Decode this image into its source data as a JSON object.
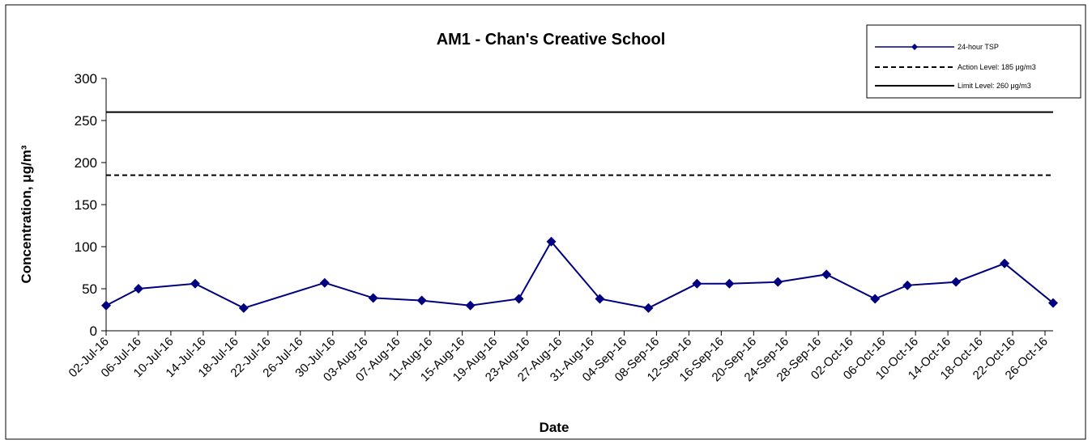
{
  "chart_data": {
    "type": "line",
    "title": "AM1 - Chan's Creative School",
    "xlabel": "Date",
    "ylabel": "Concentration, μg/m³",
    "ylim": [
      0,
      300
    ],
    "yticks": [
      0,
      50,
      100,
      150,
      200,
      250,
      300
    ],
    "xlim": [
      "2016-07-02",
      "2016-10-27"
    ],
    "xtick_labels": [
      "02-Jul-16",
      "06-Jul-16",
      "10-Jul-16",
      "14-Jul-16",
      "18-Jul-16",
      "22-Jul-16",
      "26-Jul-16",
      "30-Jul-16",
      "03-Aug-16",
      "07-Aug-16",
      "11-Aug-16",
      "15-Aug-16",
      "19-Aug-16",
      "23-Aug-16",
      "27-Aug-16",
      "31-Aug-16",
      "04-Sep-16",
      "08-Sep-16",
      "12-Sep-16",
      "16-Sep-16",
      "20-Sep-16",
      "24-Sep-16",
      "28-Sep-16",
      "02-Oct-16",
      "06-Oct-16",
      "10-Oct-16",
      "14-Oct-16",
      "18-Oct-16",
      "22-Oct-16",
      "26-Oct-16"
    ],
    "grid": false,
    "legend_position": "top-right",
    "series": [
      {
        "name": "24-hour TSP",
        "color": "#000080",
        "marker": "diamond",
        "points": [
          {
            "x": "2016-07-02",
            "y": 30
          },
          {
            "x": "2016-07-06",
            "y": 50
          },
          {
            "x": "2016-07-13",
            "y": 56
          },
          {
            "x": "2016-07-19",
            "y": 27
          },
          {
            "x": "2016-07-29",
            "y": 57
          },
          {
            "x": "2016-08-04",
            "y": 39
          },
          {
            "x": "2016-08-10",
            "y": 36
          },
          {
            "x": "2016-08-16",
            "y": 30
          },
          {
            "x": "2016-08-22",
            "y": 38
          },
          {
            "x": "2016-08-26",
            "y": 106
          },
          {
            "x": "2016-09-01",
            "y": 38
          },
          {
            "x": "2016-09-07",
            "y": 27
          },
          {
            "x": "2016-09-13",
            "y": 56
          },
          {
            "x": "2016-09-17",
            "y": 56
          },
          {
            "x": "2016-09-23",
            "y": 58
          },
          {
            "x": "2016-09-29",
            "y": 67
          },
          {
            "x": "2016-10-05",
            "y": 38
          },
          {
            "x": "2016-10-09",
            "y": 54
          },
          {
            "x": "2016-10-15",
            "y": 58
          },
          {
            "x": "2016-10-21",
            "y": 80
          },
          {
            "x": "2016-10-27",
            "y": 33
          }
        ]
      },
      {
        "name": "Action Level: 185 μg/m3",
        "value": 185,
        "color": "#000000",
        "style": "dashed"
      },
      {
        "name": "Limit Level: 260 μg/m3",
        "value": 260,
        "color": "#000000",
        "style": "solid"
      }
    ]
  }
}
